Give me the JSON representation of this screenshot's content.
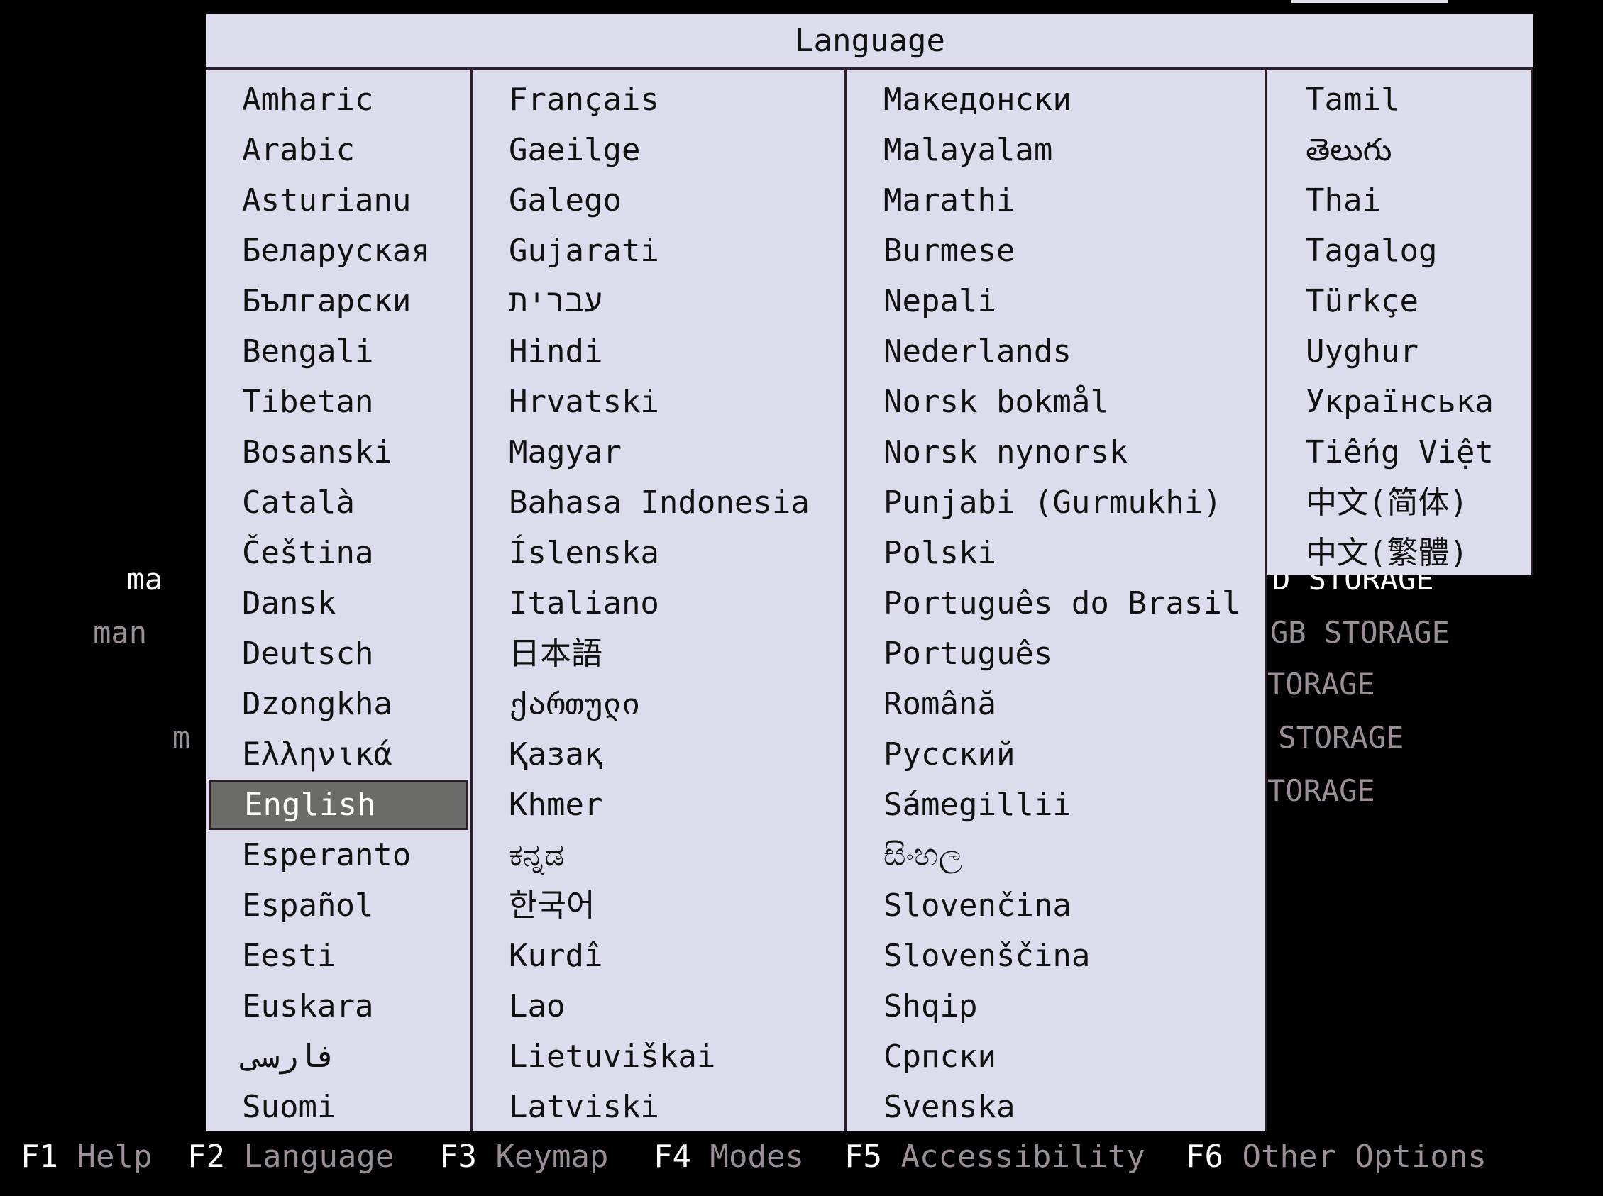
{
  "background": {
    "left_fragments": [
      {
        "text": "ma",
        "white": true
      },
      {
        "text": "man",
        "white": false
      },
      {
        "text": "m",
        "white": false
      }
    ],
    "right_fragments": [
      {
        "text": "D STORAGE",
        "white": true
      },
      {
        "text": "GB STORAGE",
        "white": false
      },
      {
        "text": "TORAGE",
        "white": false
      },
      {
        "text": " STORAGE",
        "white": false
      },
      {
        "text": "TORAGE",
        "white": false
      }
    ]
  },
  "dialog": {
    "title": "Language",
    "selected": "English",
    "columns": [
      [
        "Amharic",
        "Arabic",
        "Asturianu",
        "Беларуская",
        "Български",
        "Bengali",
        "Tibetan",
        "Bosanski",
        "Català",
        "Čeština",
        "Dansk",
        "Deutsch",
        "Dzongkha",
        "Ελληνικά",
        "English",
        "Esperanto",
        "Español",
        "Eesti",
        "Euskara",
        "فارسی",
        "Suomi"
      ],
      [
        "Français",
        "Gaeilge",
        "Galego",
        "Gujarati",
        "עברית",
        "Hindi",
        "Hrvatski",
        "Magyar",
        "Bahasa Indonesia",
        "Íslenska",
        "Italiano",
        "日本語",
        "ქართული",
        "Қазақ",
        "Khmer",
        "ಕನ್ನಡ",
        "한국어",
        "Kurdî",
        "Lao",
        "Lietuviškai",
        "Latviski"
      ],
      [
        "Македонски",
        "Malayalam",
        "Marathi",
        "Burmese",
        "Nepali",
        "Nederlands",
        "Norsk bokmål",
        "Norsk nynorsk",
        "Punjabi (Gurmukhi)",
        "Polski",
        "Português do Brasil",
        "Português",
        "Română",
        "Русский",
        "Sámegillii",
        "සිංහල",
        "Slovenčina",
        "Slovenščina",
        "Shqip",
        "Српски",
        "Svenska"
      ],
      [
        "Tamil",
        "తెలుగు",
        "Thai",
        "Tagalog",
        "Türkçe",
        "Uyghur",
        "Українська",
        "Tiếng Việt",
        "中文(简体)",
        "中文(繁體)"
      ]
    ]
  },
  "footer": [
    {
      "key": "F1",
      "label": "Help"
    },
    {
      "key": "F2",
      "label": "Language"
    },
    {
      "key": "F3",
      "label": "Keymap"
    },
    {
      "key": "F4",
      "label": "Modes"
    },
    {
      "key": "F5",
      "label": "Accessibility"
    },
    {
      "key": "F6",
      "label": "Other Options"
    }
  ],
  "colors": {
    "dialog_bg": "#dcdcec",
    "selection_bg": "#6b6b68",
    "footer_label": "#9a8f98"
  }
}
